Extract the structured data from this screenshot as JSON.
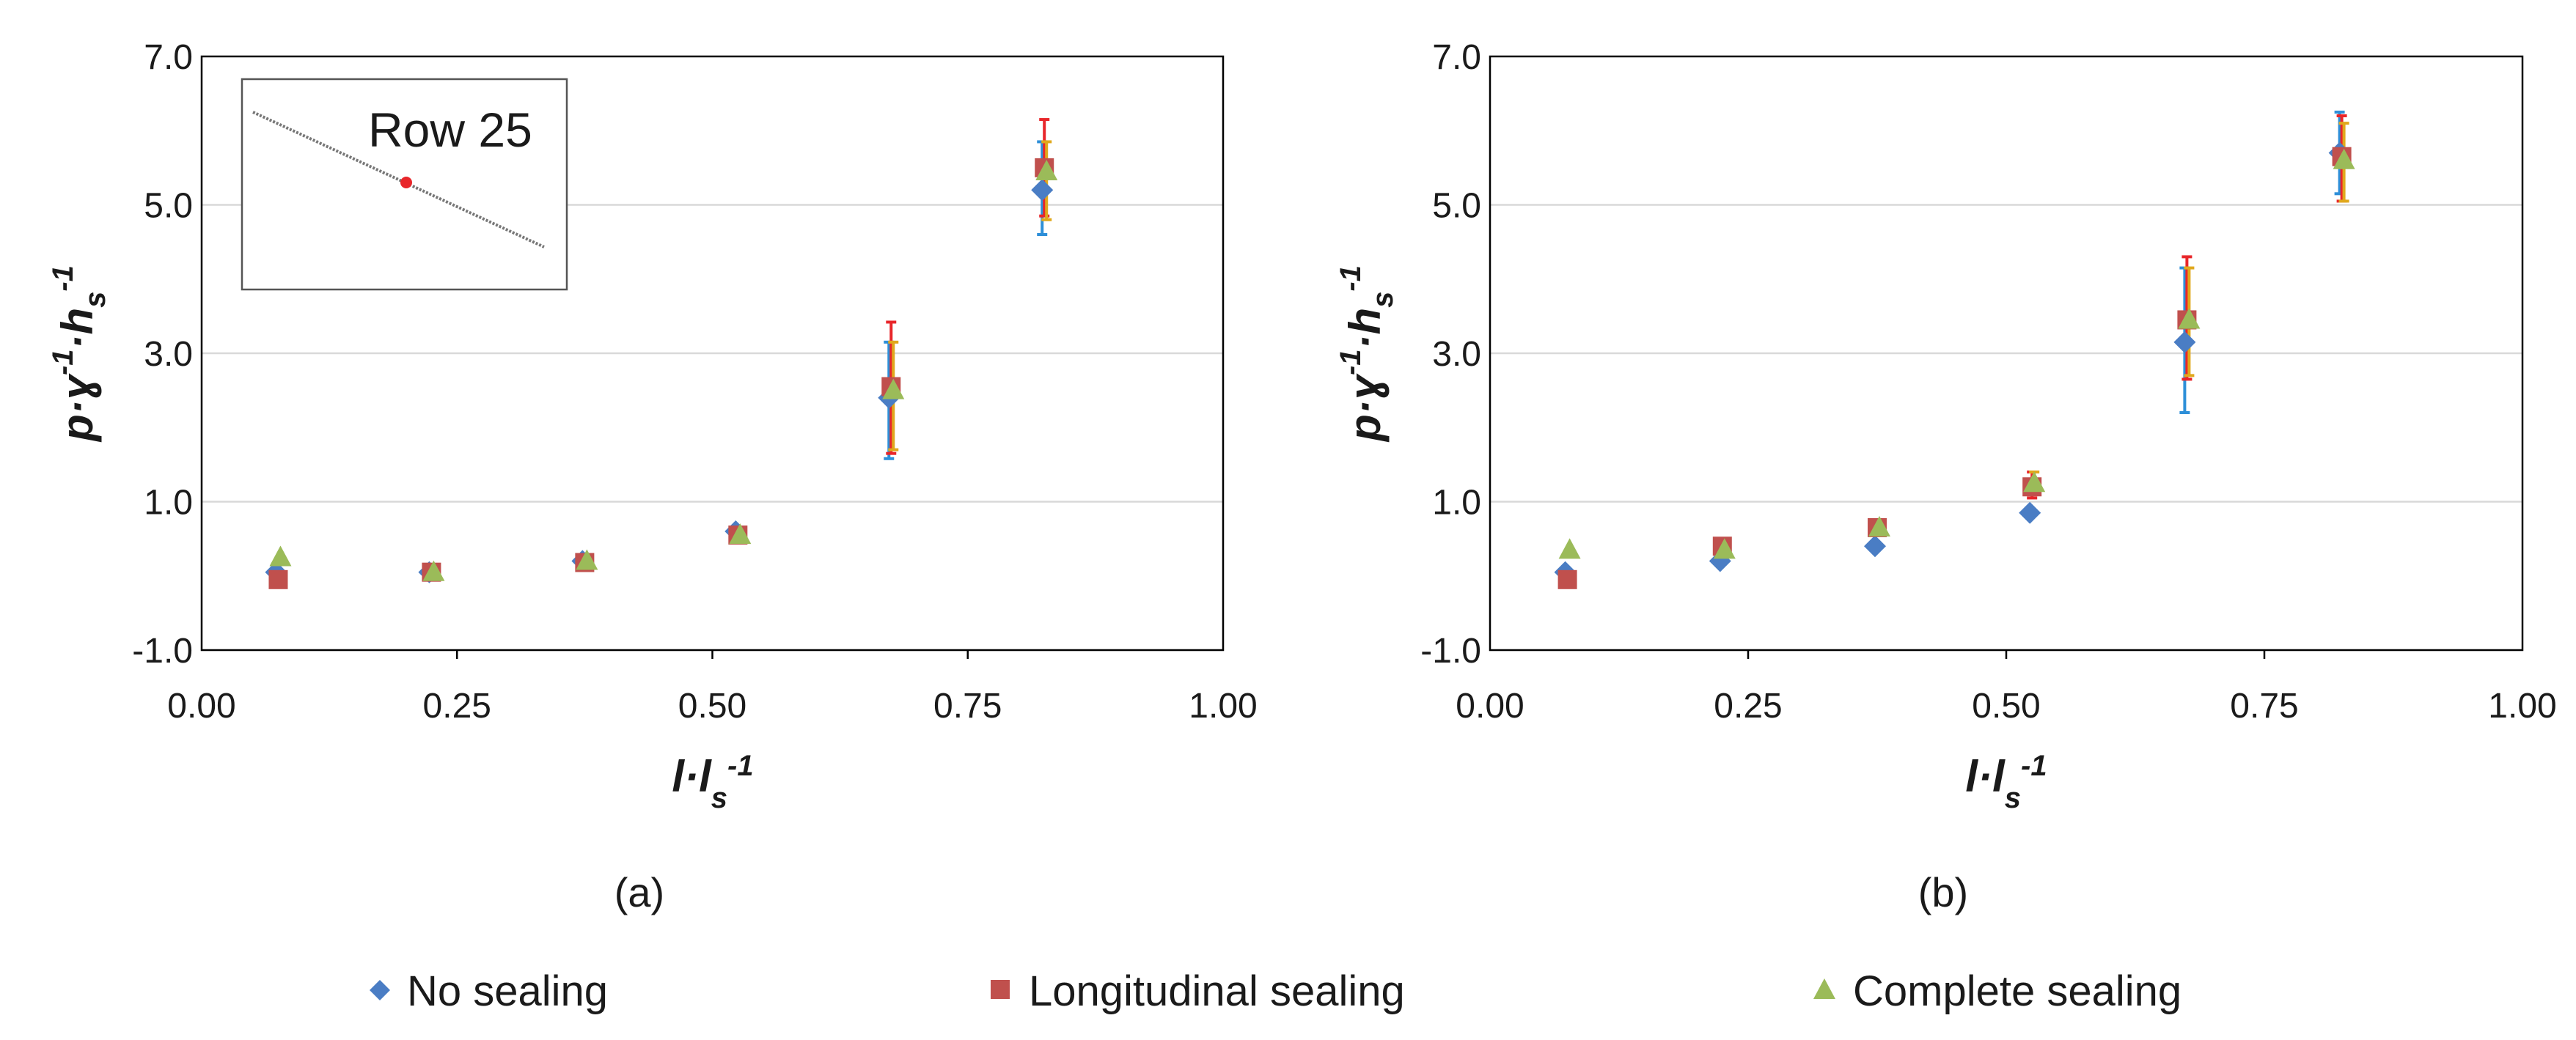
{
  "colors": {
    "no_sealing": "#4a7dc4",
    "no_sealing_err": "#2e8fd8",
    "longitudinal": "#c0504d",
    "longitudinal_err": "#e8262a",
    "complete": "#9bbb59",
    "complete_err": "#e0a81c",
    "grid": "#d9d9d9",
    "axis": "#000000"
  },
  "legend": {
    "items": [
      {
        "label": "No sealing",
        "series": "no_sealing",
        "marker": "diamond"
      },
      {
        "label": "Longitudinal sealing",
        "series": "longitudinal",
        "marker": "square"
      },
      {
        "label": "Complete sealing",
        "series": "complete",
        "marker": "triangle"
      }
    ]
  },
  "chart_data": [
    {
      "type": "scatter",
      "panel_label": "(a)",
      "inset_label": "Row 25",
      "xlim": [
        0.0,
        1.0
      ],
      "ylim": [
        -1.0,
        7.0
      ],
      "xticks": [
        "0.00",
        "0.25",
        "0.50",
        "0.75",
        "1.00"
      ],
      "yticks": [
        "-1.0",
        "1.0",
        "3.0",
        "5.0",
        "7.0"
      ],
      "xtick_values": [
        0.0,
        0.25,
        0.5,
        0.75,
        1.0
      ],
      "ytick_values": [
        -1.0,
        1.0,
        3.0,
        5.0,
        7.0
      ],
      "grid_y": true,
      "x": [
        0.075,
        0.225,
        0.375,
        0.525,
        0.675,
        0.825
      ],
      "series": [
        {
          "name": "No sealing",
          "key": "no_sealing",
          "values": [
            0.05,
            0.05,
            0.2,
            0.6,
            2.4,
            5.2
          ],
          "err_low": [
            0.05,
            0.05,
            0.2,
            0.6,
            1.58,
            4.6
          ],
          "err_high": [
            0.05,
            0.05,
            0.2,
            0.6,
            3.15,
            5.85
          ]
        },
        {
          "name": "Longitudinal sealing",
          "key": "longitudinal",
          "values": [
            -0.05,
            0.05,
            0.18,
            0.55,
            2.55,
            5.5
          ],
          "err_low": [
            -0.05,
            0.05,
            0.18,
            0.55,
            1.65,
            4.85
          ],
          "err_high": [
            -0.05,
            0.05,
            0.18,
            0.55,
            3.42,
            6.15
          ]
        },
        {
          "name": "Complete sealing",
          "key": "complete",
          "values": [
            0.25,
            0.05,
            0.2,
            0.55,
            2.5,
            5.45
          ],
          "err_low": [
            0.25,
            0.05,
            0.2,
            0.55,
            1.7,
            4.8
          ],
          "err_high": [
            0.25,
            0.05,
            0.2,
            0.55,
            3.15,
            5.85
          ]
        }
      ]
    },
    {
      "type": "scatter",
      "panel_label": "(b)",
      "xlim": [
        0.0,
        1.0
      ],
      "ylim": [
        -1.0,
        7.0
      ],
      "xticks": [
        "0.00",
        "0.25",
        "0.50",
        "0.75",
        "1.00"
      ],
      "yticks": [
        "-1.0",
        "1.0",
        "3.0",
        "5.0",
        "7.0"
      ],
      "xtick_values": [
        0.0,
        0.25,
        0.5,
        0.75,
        1.0
      ],
      "ytick_values": [
        -1.0,
        1.0,
        3.0,
        5.0,
        7.0
      ],
      "grid_y": true,
      "x": [
        0.075,
        0.225,
        0.375,
        0.525,
        0.675,
        0.825
      ],
      "series": [
        {
          "name": "No sealing",
          "key": "no_sealing",
          "values": [
            0.05,
            0.2,
            0.4,
            0.85,
            3.15,
            5.7
          ],
          "err_low": [
            0.05,
            0.2,
            0.4,
            0.85,
            2.2,
            5.15
          ],
          "err_high": [
            0.05,
            0.2,
            0.4,
            0.85,
            4.15,
            6.25
          ]
        },
        {
          "name": "Longitudinal sealing",
          "key": "longitudinal",
          "values": [
            -0.05,
            0.4,
            0.65,
            1.2,
            3.45,
            5.65
          ],
          "err_low": [
            -0.05,
            0.4,
            0.65,
            1.05,
            2.65,
            5.05
          ],
          "err_high": [
            -0.05,
            0.4,
            0.65,
            1.4,
            4.3,
            6.2
          ]
        },
        {
          "name": "Complete sealing",
          "key": "complete",
          "values": [
            0.35,
            0.35,
            0.65,
            1.25,
            3.45,
            5.6
          ],
          "err_low": [
            0.35,
            0.35,
            0.65,
            1.15,
            2.7,
            5.05
          ],
          "err_high": [
            0.35,
            0.35,
            0.65,
            1.4,
            4.15,
            6.1
          ]
        }
      ]
    }
  ]
}
